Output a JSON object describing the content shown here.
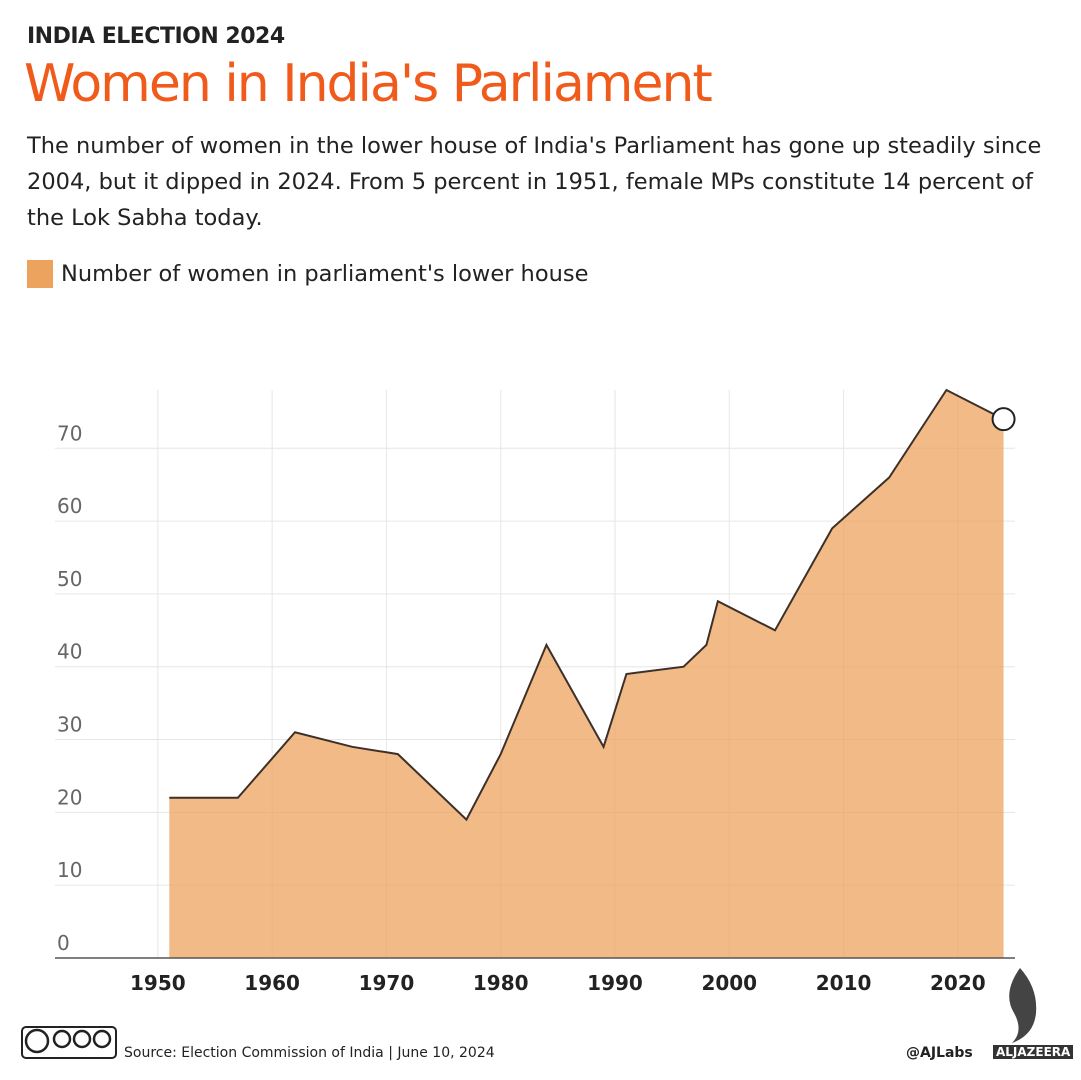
{
  "header": "INDIA ELECTION 2024",
  "chart_data": {
    "type": "area",
    "title": "Women in India's Parliament",
    "subtitle": "The number of women in the lower house of India's Parliament has gone up steadily since 2004, but it dipped in 2024. From 5 percent in 1951, female MPs constitute 14 percent of the Lok Sabha today.",
    "x": [
      1951,
      1957,
      1962,
      1967,
      1971,
      1977,
      1980,
      1984,
      1989,
      1991,
      1996,
      1998,
      1999,
      2004,
      2009,
      2014,
      2019,
      2024
    ],
    "series": [
      {
        "name": "Number of women in parliament's lower house",
        "color": "#eca35d",
        "values": [
          22,
          22,
          31,
          29,
          28,
          19,
          28,
          43,
          29,
          39,
          40,
          43,
          49,
          45,
          59,
          66,
          78,
          74
        ]
      }
    ],
    "xlim": [
      1941,
      2025
    ],
    "ylim": [
      0,
      78
    ],
    "xticks": [
      1950,
      1960,
      1970,
      1980,
      1990,
      2000,
      2010,
      2020
    ],
    "yticks": [
      0,
      10,
      20,
      30,
      40,
      50,
      60,
      70
    ],
    "grid": true,
    "source": "Source: Election Commission of India  |  June 10, 2024"
  },
  "footer": {
    "credit": "@AJLabs",
    "brand": "ALJAZEERA"
  }
}
